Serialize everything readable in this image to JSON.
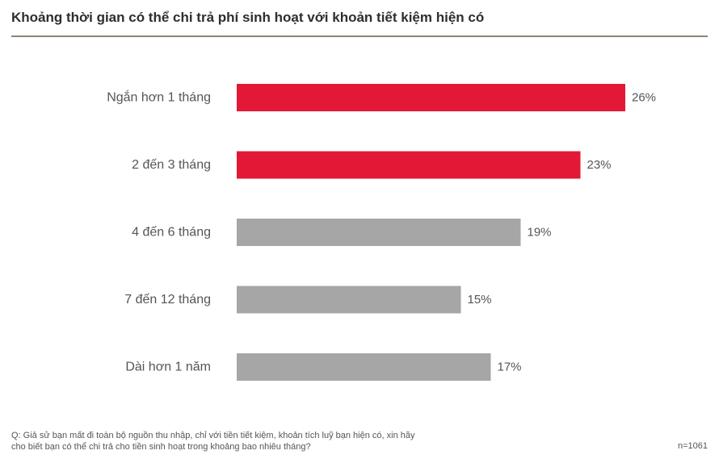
{
  "title": "Khoảng thời gian có thể chi trả phí sinh hoạt với khoản tiết kiệm hiện có",
  "footnote": {
    "line1": "Q: Giả sử bạn mất đi toàn bộ nguồn thu nhập, chỉ với tiền tiết kiệm, khoản tích luỹ bạn hiện có, xin hãy",
    "line2": "cho biết bạn có thể chi trả cho tiền sinh hoạt trong khoảng bao nhiêu tháng?"
  },
  "sample_size": "n=1061",
  "chart_data": {
    "type": "bar",
    "orientation": "horizontal",
    "categories": [
      "Ngắn hơn 1 tháng",
      "2 đến 3 tháng",
      "4 đến 6 tháng",
      "7 đến 12 tháng",
      "Dài hơn 1 năm"
    ],
    "values": [
      26,
      23,
      19,
      15,
      17
    ],
    "value_labels": [
      "26%",
      "23%",
      "19%",
      "15%",
      "17%"
    ],
    "bar_colors": [
      "#e31837",
      "#e31837",
      "#a6a6a6",
      "#a6a6a6",
      "#a6a6a6"
    ],
    "xlim": [
      0,
      26
    ],
    "grid": false,
    "legend": "none"
  }
}
